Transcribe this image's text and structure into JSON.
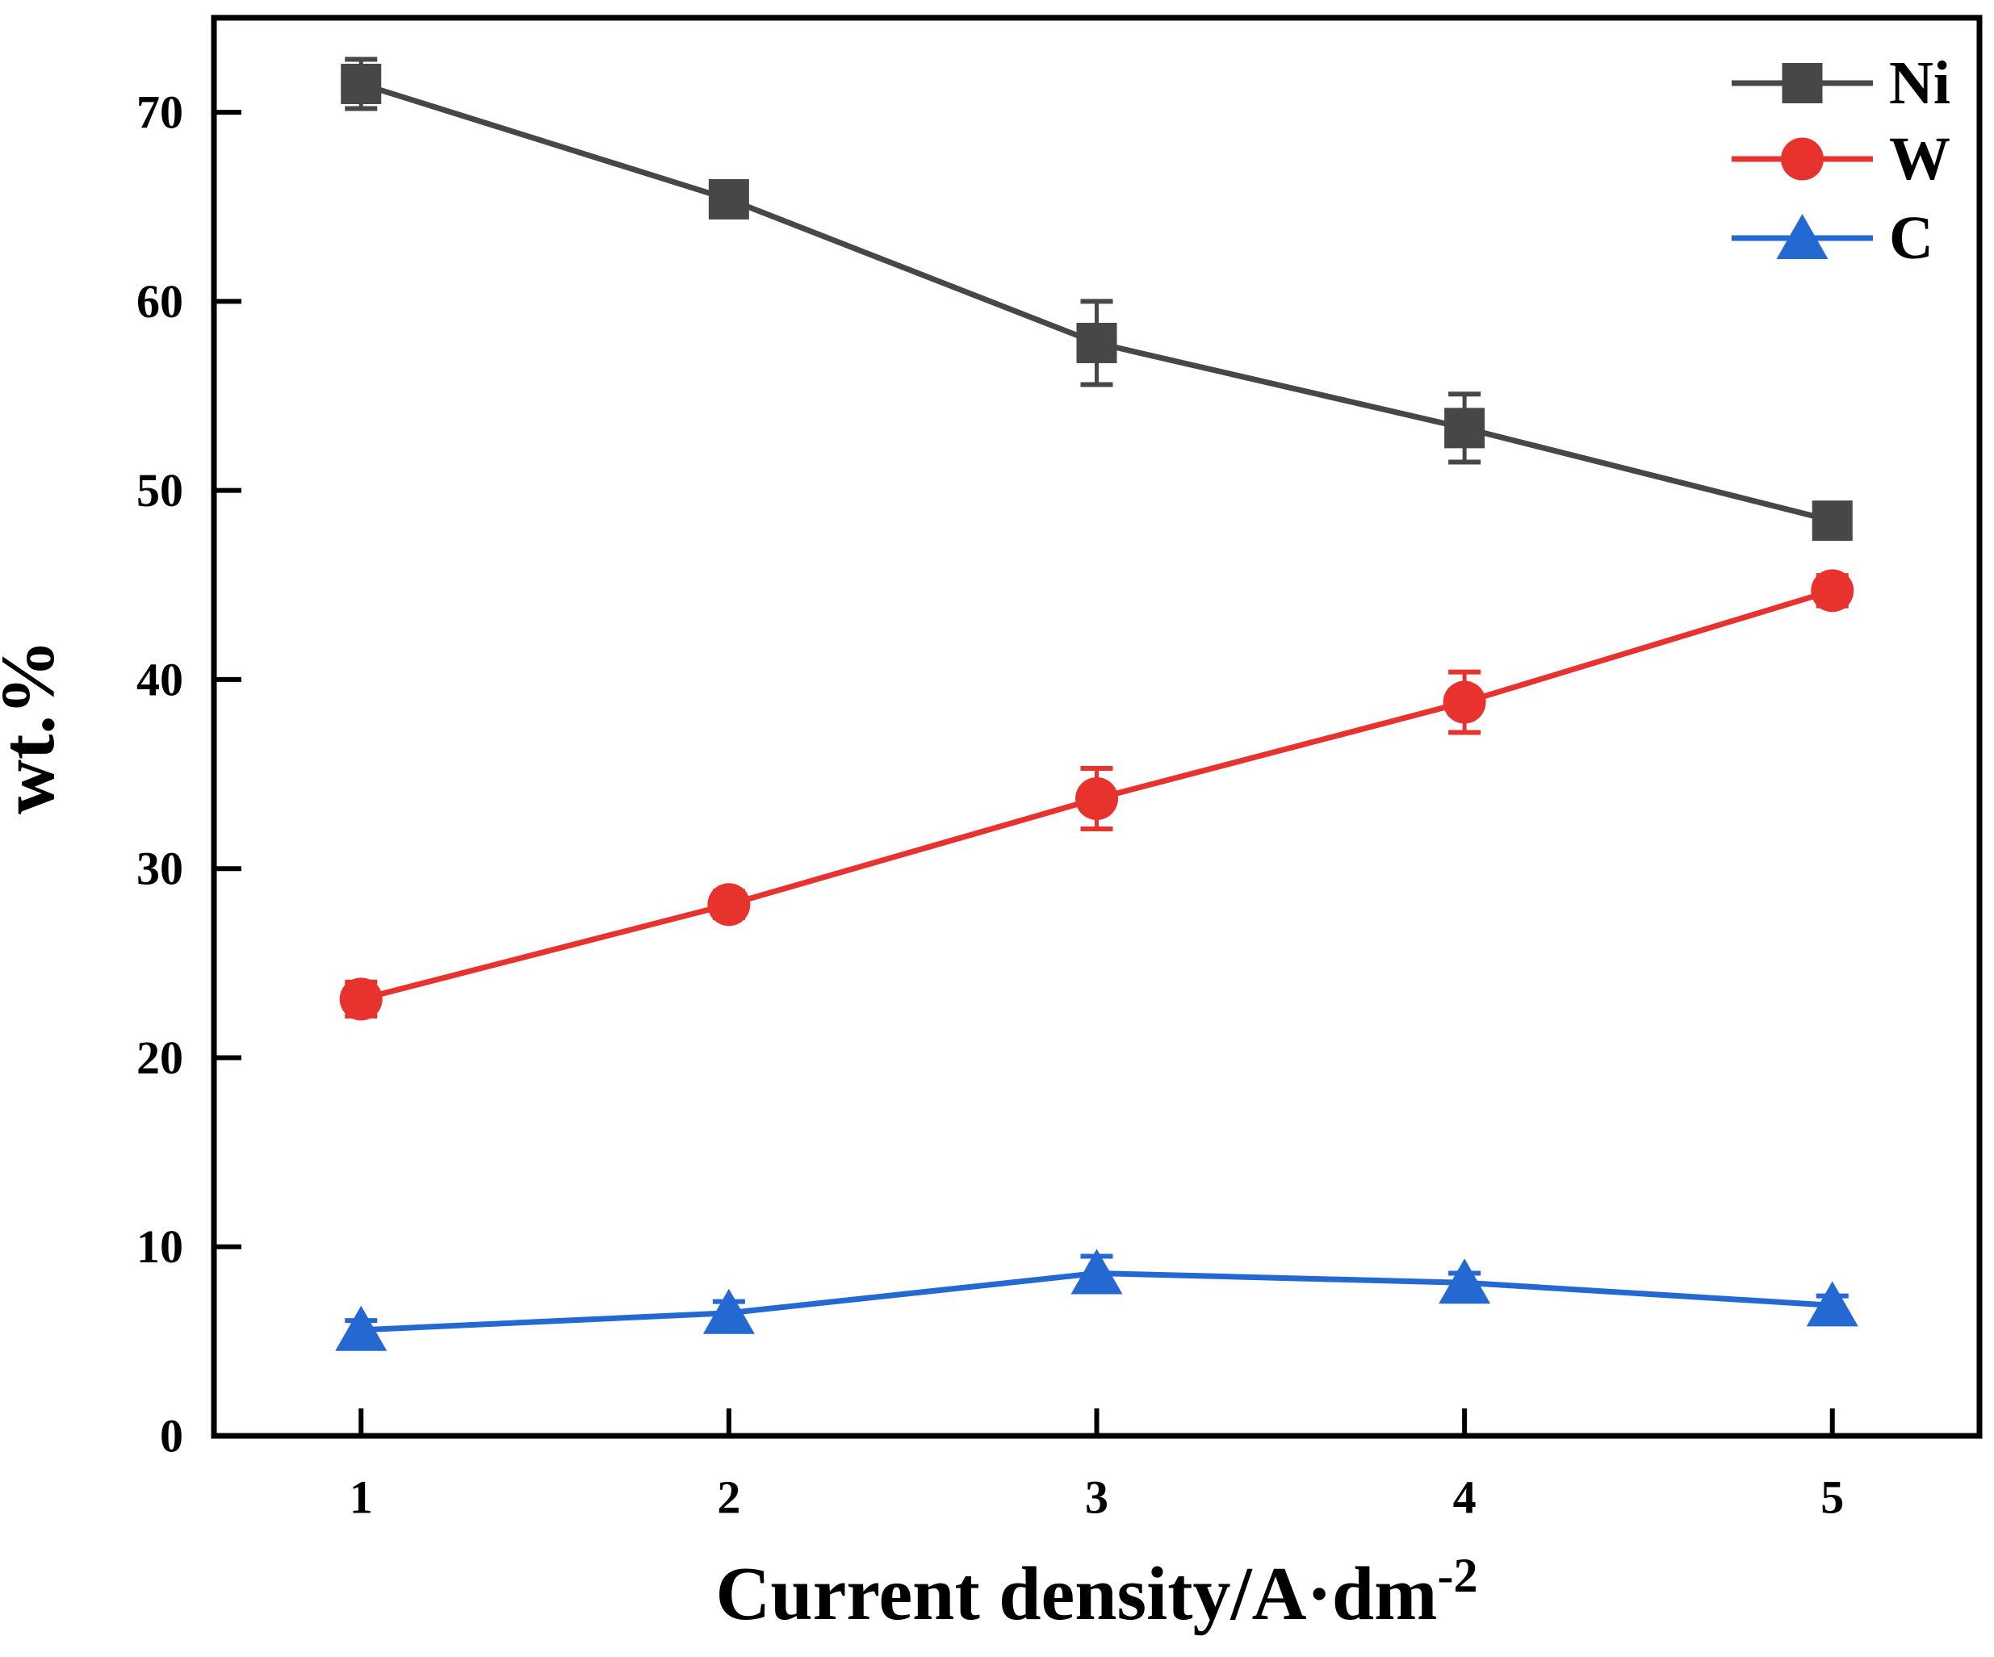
{
  "figure": {
    "background": "#ffffff",
    "axis_color": "#000000",
    "ylabel": "wt.%",
    "xlabel": "Current density/A·dm⁻²",
    "xlabel_parts": {
      "text": "Current density/A·dm",
      "superscript": "-2"
    }
  },
  "chart_data": {
    "type": "line",
    "title": "",
    "xlabel": "Current density/A·dm⁻²",
    "ylabel": "wt.%",
    "x": [
      1,
      2,
      3,
      4,
      5
    ],
    "xticks": [
      "1",
      "2",
      "3",
      "4",
      "5"
    ],
    "yticks": [
      0,
      10,
      20,
      30,
      40,
      50,
      60,
      70
    ],
    "xlim": [
      0.6,
      5.4
    ],
    "ylim": [
      0,
      75
    ],
    "grid": false,
    "legend_position": "top-right",
    "series": [
      {
        "name": "Ni",
        "color": "#474747",
        "marker": "square",
        "values": [
          71.5,
          65.4,
          57.8,
          53.3,
          48.4
        ],
        "errors": [
          1.3,
          0.8,
          2.2,
          1.8,
          0.8
        ]
      },
      {
        "name": "W",
        "color": "#e8322d",
        "marker": "circle",
        "values": [
          23.1,
          28.1,
          33.7,
          38.8,
          44.7
        ],
        "errors": [
          0.9,
          0.7,
          1.6,
          1.6,
          0.8
        ]
      },
      {
        "name": "C",
        "color": "#2468d2",
        "marker": "triangle",
        "values": [
          5.6,
          6.5,
          8.6,
          8.1,
          6.9
        ],
        "errors": [
          0.5,
          0.6,
          0.9,
          0.5,
          0.5
        ]
      }
    ]
  }
}
